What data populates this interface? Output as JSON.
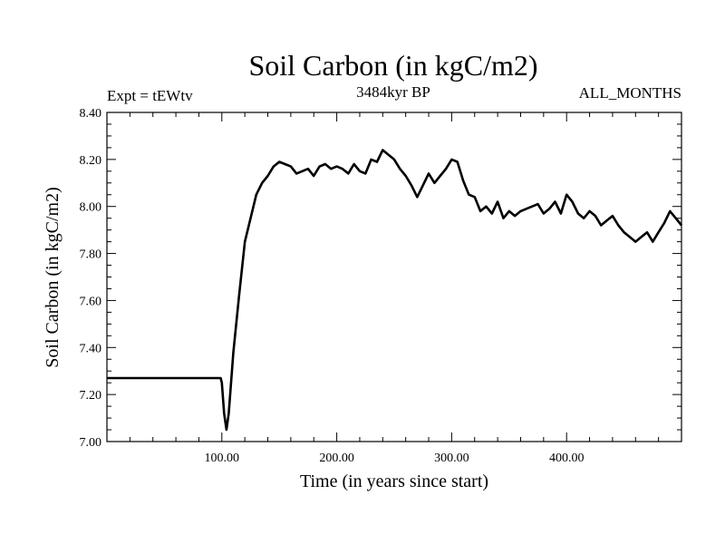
{
  "chart_data": {
    "type": "line",
    "title": "Soil Carbon (in kgC/m2)",
    "subtitle_left": "Expt = tEWtv",
    "subtitle_center": "3484kyr BP",
    "subtitle_right": "ALL_MONTHS",
    "xlabel": "Time (in years since start)",
    "ylabel": "Soil Carbon (in kgC/m2)",
    "xlim": [
      0,
      500
    ],
    "ylim": [
      7.0,
      8.4
    ],
    "x_ticks": [
      {
        "value": 100,
        "label": "100.00"
      },
      {
        "value": 200,
        "label": "200.00"
      },
      {
        "value": 300,
        "label": "300.00"
      },
      {
        "value": 400,
        "label": "400.00"
      }
    ],
    "y_ticks": [
      {
        "value": 7.0,
        "label": "7.00"
      },
      {
        "value": 7.2,
        "label": "7.20"
      },
      {
        "value": 7.4,
        "label": "7.40"
      },
      {
        "value": 7.6,
        "label": "7.60"
      },
      {
        "value": 7.8,
        "label": "7.80"
      },
      {
        "value": 8.0,
        "label": "8.00"
      },
      {
        "value": 8.2,
        "label": "8.20"
      },
      {
        "value": 8.4,
        "label": "8.40"
      }
    ],
    "series": [
      {
        "name": "Soil Carbon",
        "color": "#000000",
        "x": [
          0,
          99,
          100,
          102,
          104,
          106,
          110,
          115,
          120,
          125,
          130,
          135,
          140,
          145,
          150,
          155,
          160,
          165,
          170,
          175,
          180,
          185,
          190,
          195,
          200,
          205,
          210,
          215,
          220,
          225,
          230,
          235,
          240,
          245,
          250,
          255,
          260,
          265,
          270,
          275,
          280,
          285,
          290,
          295,
          300,
          305,
          310,
          315,
          320,
          325,
          330,
          335,
          340,
          345,
          350,
          355,
          360,
          365,
          370,
          375,
          380,
          385,
          390,
          395,
          400,
          405,
          410,
          415,
          420,
          425,
          430,
          435,
          440,
          445,
          450,
          455,
          460,
          465,
          470,
          475,
          480,
          485,
          490,
          495,
          500
        ],
        "y": [
          7.27,
          7.27,
          7.25,
          7.12,
          7.05,
          7.12,
          7.38,
          7.62,
          7.85,
          7.95,
          8.05,
          8.1,
          8.13,
          8.17,
          8.19,
          8.18,
          8.17,
          8.14,
          8.15,
          8.16,
          8.13,
          8.17,
          8.18,
          8.16,
          8.17,
          8.16,
          8.14,
          8.18,
          8.15,
          8.14,
          8.2,
          8.19,
          8.24,
          8.22,
          8.2,
          8.16,
          8.13,
          8.09,
          8.04,
          8.09,
          8.14,
          8.1,
          8.13,
          8.16,
          8.2,
          8.19,
          8.11,
          8.05,
          8.04,
          7.98,
          8.0,
          7.97,
          8.02,
          7.95,
          7.98,
          7.96,
          7.98,
          7.99,
          8.0,
          8.01,
          7.97,
          7.99,
          8.02,
          7.97,
          8.05,
          8.02,
          7.97,
          7.95,
          7.98,
          7.96,
          7.92,
          7.94,
          7.96,
          7.92,
          7.89,
          7.87,
          7.85,
          7.87,
          7.89,
          7.85,
          7.89,
          7.93,
          7.98,
          7.95,
          7.92
        ]
      }
    ]
  }
}
